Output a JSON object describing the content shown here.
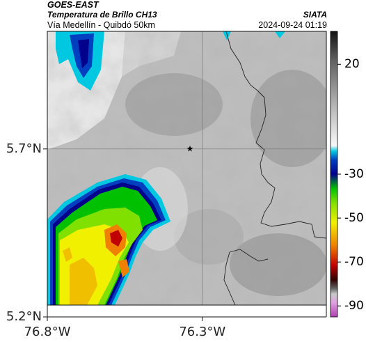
{
  "header": {
    "satellite": "GOES-EAST",
    "product": "Temperatura de Brillo CH13",
    "region": "Vía Medellín - Quibdó 50km",
    "organization": "SIATA",
    "datetime": "2024-09-24 01:19"
  },
  "map": {
    "lat_range": [
      5.2,
      6.05
    ],
    "lon_range": [
      -76.8,
      -75.9
    ],
    "gridlines": {
      "lat": [
        5.7
      ],
      "lon": [
        -76.3
      ]
    },
    "lat_tick_labels": [
      {
        "value": 5.7,
        "label": "5.7°N"
      },
      {
        "value": 5.2,
        "label": "5.2°N"
      }
    ],
    "lon_tick_labels": [
      {
        "value": -76.8,
        "label": "76.8°W"
      },
      {
        "value": -76.3,
        "label": "76.3°W"
      }
    ],
    "marker": {
      "symbol": "star-icon",
      "lat": 5.7,
      "lon": -76.34
    }
  },
  "colorbar": {
    "range": [
      -95,
      35
    ],
    "tick_labels": [
      {
        "value": 20,
        "label": "20"
      },
      {
        "value": -30,
        "label": "-30"
      },
      {
        "value": -50,
        "label": "-50"
      },
      {
        "value": -70,
        "label": "-70"
      },
      {
        "value": -90,
        "label": "-90"
      }
    ],
    "colors": {
      "warm_gray_top": "#111111",
      "gray_mid": "#808080",
      "gray_light": "#f2f2f2",
      "cyan": "#00c8e0",
      "blue": "#0040c0",
      "dark_blue": "#00008c",
      "green": "#00c000",
      "yellow": "#f0f000",
      "orange": "#f08000",
      "red": "#c00000",
      "dark_red": "#300000",
      "magenta": "#b040b0"
    }
  }
}
